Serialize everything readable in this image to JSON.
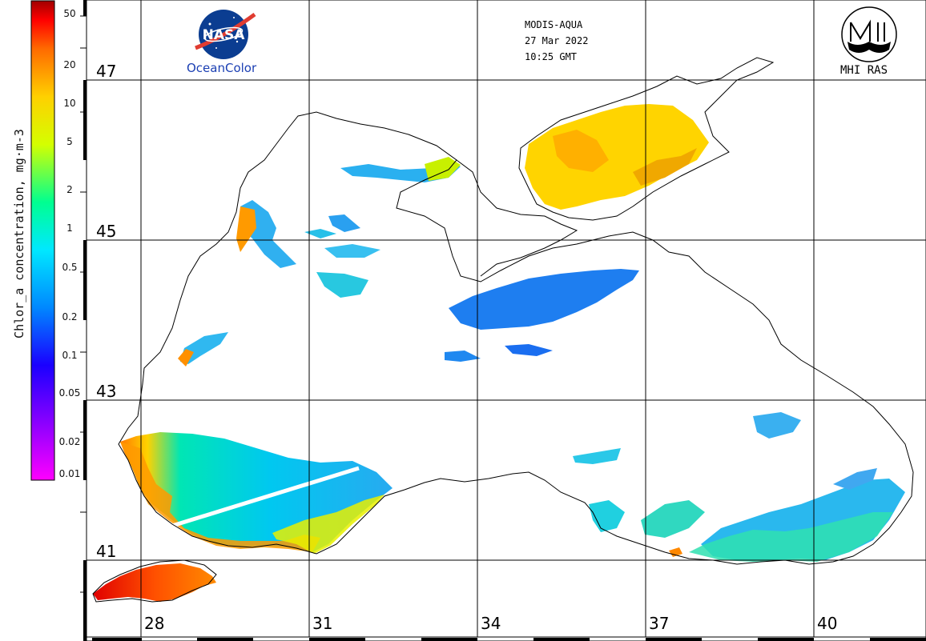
{
  "header": {
    "sensor": "MODIS-AQUA",
    "date": "27 Mar 2022",
    "time": "10:25 GMT"
  },
  "logos": {
    "nasa": {
      "wordmark": "NASA",
      "caption": "OceanColor"
    },
    "mhi": {
      "caption": "MHI RAS"
    }
  },
  "colorbar": {
    "title": "Chlor_a concentration, mg·m-3",
    "ticks": [
      "50",
      "20",
      "10",
      "5",
      "2",
      "1",
      "0.5",
      "0.2",
      "0.1",
      "0.05",
      "0.02",
      "0.01"
    ],
    "colors": [
      "#ff00ff",
      "#8a00ff",
      "#1a00ff",
      "#0088ff",
      "#00e8ff",
      "#00ff90",
      "#d4ff00",
      "#ffd000",
      "#ff6a00",
      "#ff0000",
      "#a00000"
    ]
  },
  "axes": {
    "latitudes": [
      "47",
      "45",
      "43",
      "41"
    ],
    "longitudes": [
      "28",
      "31",
      "34",
      "37",
      "40"
    ]
  },
  "legend_colors": {
    "land": "#ffffff",
    "coast": "#000000",
    "grid": "#000000"
  }
}
